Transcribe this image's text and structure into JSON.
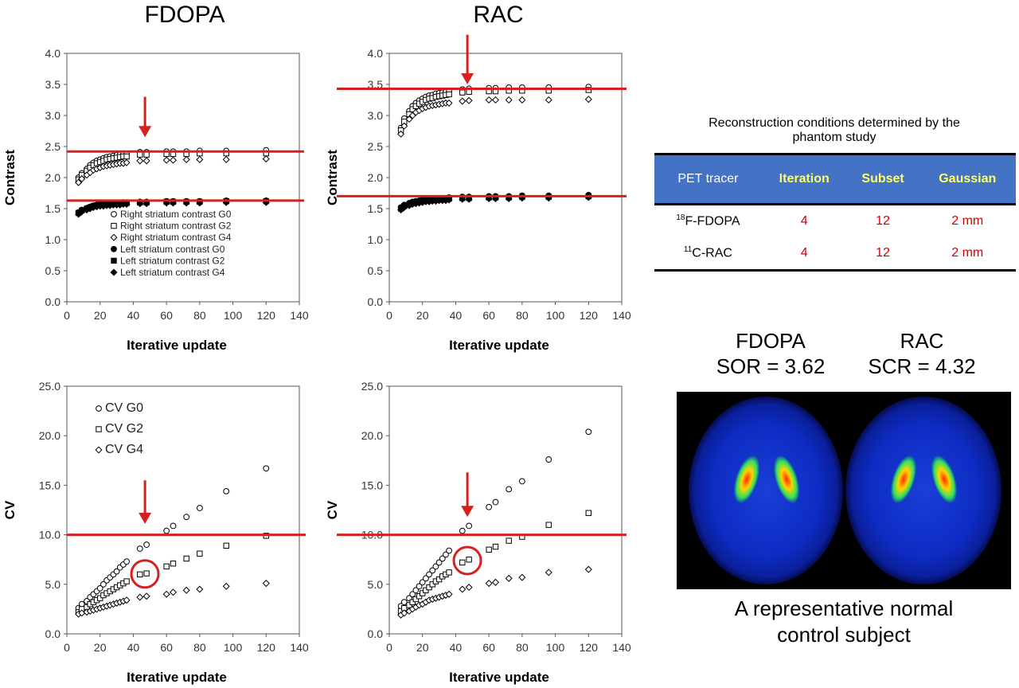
{
  "titles": {
    "left": "FDOPA",
    "right": "RAC"
  },
  "table": {
    "caption": "Reconstruction conditions determined by the phantom study",
    "headers": [
      "PET tracer",
      "Iteration",
      "Subset",
      "Gaussian"
    ],
    "rows": [
      {
        "tracer_sup": "18",
        "tracer": "F-FDOPA",
        "iteration": "4",
        "subset": "12",
        "gaussian": "2 mm"
      },
      {
        "tracer_sup": "11",
        "tracer": "C-RAC",
        "iteration": "4",
        "subset": "12",
        "gaussian": "2 mm"
      }
    ]
  },
  "images": {
    "left_title_1": "FDOPA",
    "left_title_2": "SOR = 3.62",
    "right_title_1": "RAC",
    "right_title_2": "SCR = 4.32",
    "caption_1": "A representative normal",
    "caption_2": "control subject"
  },
  "colors": {
    "accent": "#d62020",
    "table_header": "#4472c4",
    "table_header_text": "#ffff66"
  },
  "chart_data": [
    {
      "type": "scatter",
      "panel": "FDOPA contrast",
      "xlabel": "Iterative update",
      "ylabel": "Contrast",
      "xlim": [
        0,
        140
      ],
      "ylim": [
        0,
        4.0
      ],
      "xticks": [
        "0",
        "20",
        "40",
        "60",
        "80",
        "100",
        "120",
        "140"
      ],
      "yticks": [
        "0.0",
        "0.5",
        "1.0",
        "1.5",
        "2.0",
        "2.5",
        "3.0",
        "3.5",
        "4.0"
      ],
      "x": [
        7,
        9,
        12,
        14,
        16,
        18,
        20,
        22,
        24,
        26,
        28,
        30,
        32,
        34,
        36,
        44,
        48,
        60,
        64,
        72,
        80,
        96,
        120
      ],
      "series": [
        {
          "name": "Right striatum contrast G0",
          "marker": "circle-open",
          "values": [
            2.0,
            2.07,
            2.14,
            2.2,
            2.24,
            2.27,
            2.29,
            2.31,
            2.33,
            2.34,
            2.35,
            2.36,
            2.37,
            2.38,
            2.38,
            2.41,
            2.41,
            2.42,
            2.42,
            2.42,
            2.43,
            2.43,
            2.44
          ]
        },
        {
          "name": "Right striatum contrast G2",
          "marker": "square-open",
          "values": [
            1.97,
            2.04,
            2.11,
            2.16,
            2.2,
            2.23,
            2.25,
            2.27,
            2.29,
            2.3,
            2.31,
            2.32,
            2.33,
            2.34,
            2.34,
            2.37,
            2.37,
            2.38,
            2.38,
            2.38,
            2.39,
            2.39,
            2.39
          ]
        },
        {
          "name": "Right striatum contrast G4",
          "marker": "diamond-open",
          "values": [
            1.92,
            1.98,
            2.04,
            2.08,
            2.12,
            2.14,
            2.16,
            2.18,
            2.19,
            2.2,
            2.21,
            2.22,
            2.23,
            2.23,
            2.24,
            2.27,
            2.27,
            2.28,
            2.28,
            2.29,
            2.29,
            2.29,
            2.3
          ]
        },
        {
          "name": "Left striatum contrast G0",
          "marker": "circle-filled",
          "values": [
            1.44,
            1.48,
            1.51,
            1.53,
            1.55,
            1.56,
            1.57,
            1.57,
            1.58,
            1.58,
            1.59,
            1.59,
            1.59,
            1.6,
            1.6,
            1.61,
            1.61,
            1.62,
            1.62,
            1.62,
            1.62,
            1.63,
            1.63
          ]
        },
        {
          "name": "Left striatum contrast G2",
          "marker": "square-filled",
          "values": [
            1.43,
            1.47,
            1.5,
            1.52,
            1.54,
            1.55,
            1.56,
            1.56,
            1.57,
            1.57,
            1.58,
            1.58,
            1.58,
            1.59,
            1.59,
            1.6,
            1.6,
            1.61,
            1.61,
            1.61,
            1.61,
            1.62,
            1.62
          ]
        },
        {
          "name": "Left striatum contrast G4",
          "marker": "diamond-filled",
          "values": [
            1.41,
            1.45,
            1.48,
            1.5,
            1.52,
            1.53,
            1.54,
            1.54,
            1.55,
            1.55,
            1.56,
            1.56,
            1.56,
            1.57,
            1.57,
            1.58,
            1.58,
            1.59,
            1.59,
            1.59,
            1.59,
            1.6,
            1.6
          ]
        }
      ],
      "hlines": [
        2.42,
        1.63
      ],
      "arrow_x": 48,
      "arrow_y": [
        3.3,
        2.65
      ],
      "legend_placement": "lower-center"
    },
    {
      "type": "scatter",
      "panel": "RAC contrast",
      "xlabel": "Iterative update",
      "ylabel": "Contrast",
      "xlim": [
        0,
        140
      ],
      "ylim": [
        0,
        4.0
      ],
      "xticks": [
        "0",
        "20",
        "40",
        "60",
        "80",
        "100",
        "120",
        "140"
      ],
      "yticks": [
        "0.0",
        "0.5",
        "1.0",
        "1.5",
        "2.0",
        "2.5",
        "3.0",
        "3.5",
        "4.0"
      ],
      "x": [
        7,
        9,
        12,
        14,
        16,
        18,
        20,
        22,
        24,
        26,
        28,
        30,
        32,
        34,
        36,
        44,
        48,
        60,
        64,
        72,
        80,
        96,
        120
      ],
      "series": [
        {
          "name": "Right striatum contrast G0",
          "marker": "circle-open",
          "values": [
            2.8,
            2.95,
            3.07,
            3.15,
            3.2,
            3.24,
            3.27,
            3.3,
            3.32,
            3.33,
            3.35,
            3.36,
            3.37,
            3.38,
            3.39,
            3.42,
            3.43,
            3.44,
            3.44,
            3.45,
            3.45,
            3.45,
            3.46
          ]
        },
        {
          "name": "Right striatum contrast G2",
          "marker": "square-open",
          "values": [
            2.76,
            2.9,
            3.02,
            3.1,
            3.15,
            3.19,
            3.22,
            3.25,
            3.27,
            3.28,
            3.3,
            3.31,
            3.32,
            3.33,
            3.34,
            3.37,
            3.38,
            3.39,
            3.39,
            3.4,
            3.4,
            3.4,
            3.41
          ]
        },
        {
          "name": "Right striatum contrast G4",
          "marker": "diamond-open",
          "values": [
            2.7,
            2.83,
            2.94,
            3.0,
            3.05,
            3.08,
            3.11,
            3.13,
            3.15,
            3.16,
            3.17,
            3.18,
            3.19,
            3.2,
            3.2,
            3.23,
            3.24,
            3.25,
            3.25,
            3.25,
            3.25,
            3.25,
            3.26
          ]
        },
        {
          "name": "Left striatum contrast G0",
          "marker": "circle-filled",
          "values": [
            1.52,
            1.56,
            1.59,
            1.61,
            1.62,
            1.63,
            1.64,
            1.65,
            1.65,
            1.66,
            1.66,
            1.67,
            1.67,
            1.67,
            1.68,
            1.69,
            1.69,
            1.7,
            1.7,
            1.7,
            1.71,
            1.71,
            1.72
          ]
        },
        {
          "name": "Left striatum contrast G2",
          "marker": "square-filled",
          "values": [
            1.5,
            1.54,
            1.57,
            1.59,
            1.6,
            1.61,
            1.62,
            1.63,
            1.63,
            1.64,
            1.64,
            1.65,
            1.65,
            1.65,
            1.66,
            1.67,
            1.67,
            1.68,
            1.68,
            1.68,
            1.69,
            1.69,
            1.7
          ]
        },
        {
          "name": "Left striatum contrast G4",
          "marker": "diamond-filled",
          "values": [
            1.48,
            1.52,
            1.55,
            1.57,
            1.58,
            1.59,
            1.6,
            1.61,
            1.61,
            1.62,
            1.62,
            1.63,
            1.63,
            1.63,
            1.64,
            1.65,
            1.65,
            1.66,
            1.66,
            1.66,
            1.67,
            1.67,
            1.68
          ]
        }
      ],
      "hlines": [
        3.43,
        1.7
      ],
      "arrow_x": 48,
      "arrow_y": [
        4.3,
        3.5
      ]
    },
    {
      "type": "scatter",
      "panel": "FDOPA CV",
      "xlabel": "Iterative update",
      "ylabel": "CV",
      "xlim": [
        0,
        140
      ],
      "ylim": [
        0,
        25.0
      ],
      "xticks": [
        "0",
        "20",
        "40",
        "60",
        "80",
        "100",
        "120",
        "140"
      ],
      "yticks": [
        "0.0",
        "5.0",
        "10.0",
        "15.0",
        "20.0",
        "25.0"
      ],
      "x": [
        7,
        9,
        12,
        14,
        16,
        18,
        20,
        22,
        24,
        26,
        28,
        30,
        32,
        34,
        36,
        44,
        48,
        60,
        64,
        72,
        80,
        96,
        120
      ],
      "series": [
        {
          "name": "CV G0",
          "marker": "circle-open",
          "values": [
            2.6,
            3.0,
            3.3,
            3.7,
            4.0,
            4.3,
            4.6,
            5.0,
            5.4,
            5.7,
            6.0,
            6.3,
            6.7,
            7.0,
            7.3,
            8.6,
            9.0,
            10.4,
            10.9,
            11.8,
            12.7,
            14.4,
            16.7
          ]
        },
        {
          "name": "CV G2",
          "marker": "square-open",
          "values": [
            2.2,
            2.5,
            2.7,
            3.0,
            3.2,
            3.4,
            3.6,
            3.9,
            4.1,
            4.3,
            4.5,
            4.7,
            4.9,
            5.1,
            5.3,
            6.0,
            6.1,
            6.8,
            7.1,
            7.6,
            8.1,
            8.9,
            9.9
          ]
        },
        {
          "name": "CV G4",
          "marker": "diamond-open",
          "values": [
            2.0,
            2.1,
            2.2,
            2.3,
            2.4,
            2.5,
            2.6,
            2.7,
            2.8,
            2.9,
            3.0,
            3.1,
            3.2,
            3.3,
            3.4,
            3.7,
            3.8,
            4.0,
            4.2,
            4.4,
            4.5,
            4.8,
            5.1
          ]
        }
      ],
      "hlines": [
        10.0
      ],
      "arrow_x": 48,
      "arrow_y": [
        15.5,
        11.1
      ],
      "circle": [
        47,
        6.05
      ],
      "legend_placement": "top-left"
    },
    {
      "type": "scatter",
      "panel": "RAC CV",
      "xlabel": "Iterative update",
      "ylabel": "CV",
      "xlim": [
        0,
        140
      ],
      "ylim": [
        0,
        25.0
      ],
      "xticks": [
        "0",
        "20",
        "40",
        "60",
        "80",
        "100",
        "120",
        "140"
      ],
      "yticks": [
        "0.0",
        "5.0",
        "10.0",
        "15.0",
        "20.0",
        "25.0"
      ],
      "x": [
        7,
        9,
        12,
        14,
        16,
        18,
        20,
        22,
        24,
        26,
        28,
        30,
        32,
        34,
        36,
        44,
        48,
        60,
        64,
        72,
        80,
        96,
        120
      ],
      "series": [
        {
          "name": "CV G0",
          "marker": "circle-open",
          "values": [
            2.8,
            3.2,
            3.6,
            4.0,
            4.4,
            4.8,
            5.2,
            5.6,
            6.0,
            6.4,
            6.8,
            7.2,
            7.6,
            8.0,
            8.4,
            10.4,
            10.9,
            12.8,
            13.3,
            14.6,
            15.4,
            17.6,
            20.4
          ]
        },
        {
          "name": "CV G2",
          "marker": "square-open",
          "values": [
            2.3,
            2.6,
            2.9,
            3.2,
            3.5,
            3.8,
            4.1,
            4.4,
            4.7,
            5.0,
            5.3,
            5.5,
            5.8,
            6.0,
            6.2,
            7.2,
            7.5,
            8.5,
            8.8,
            9.4,
            9.8,
            11.0,
            12.2
          ]
        },
        {
          "name": "CV G4",
          "marker": "diamond-open",
          "values": [
            1.9,
            2.1,
            2.3,
            2.5,
            2.7,
            2.9,
            3.0,
            3.2,
            3.4,
            3.5,
            3.6,
            3.7,
            3.8,
            3.9,
            4.0,
            4.5,
            4.7,
            5.1,
            5.2,
            5.6,
            5.7,
            6.2,
            6.5
          ]
        }
      ],
      "hlines": [
        10.0
      ],
      "arrow_x": 48,
      "arrow_y": [
        16.3,
        11.8
      ],
      "circle": [
        47,
        7.4
      ]
    }
  ]
}
